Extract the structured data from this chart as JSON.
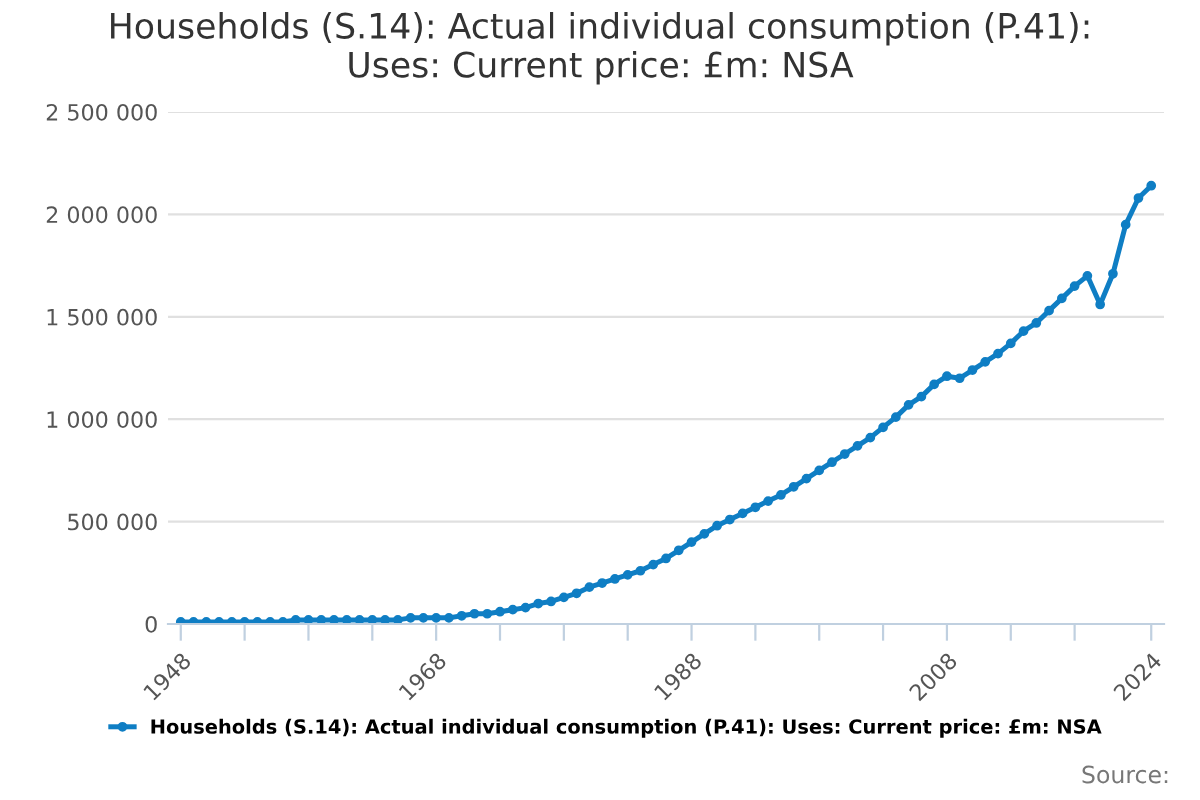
{
  "chart_data": {
    "type": "line",
    "title": "Households (S.14): Actual individual consumption (P.41):\nUses: Current price: £m: NSA",
    "x": [
      1948,
      1949,
      1950,
      1951,
      1952,
      1953,
      1954,
      1955,
      1956,
      1957,
      1958,
      1959,
      1960,
      1961,
      1962,
      1963,
      1964,
      1965,
      1966,
      1967,
      1968,
      1969,
      1970,
      1971,
      1972,
      1973,
      1974,
      1975,
      1976,
      1977,
      1978,
      1979,
      1980,
      1981,
      1982,
      1983,
      1984,
      1985,
      1986,
      1987,
      1988,
      1989,
      1990,
      1991,
      1992,
      1993,
      1994,
      1995,
      1996,
      1997,
      1998,
      1999,
      2000,
      2001,
      2002,
      2003,
      2004,
      2005,
      2006,
      2007,
      2008,
      2009,
      2010,
      2011,
      2012,
      2013,
      2014,
      2015,
      2016,
      2017,
      2018,
      2019,
      2020,
      2021,
      2022,
      2023,
      2024
    ],
    "series": [
      {
        "name": "Households (S.14): Actual individual consumption (P.41): Uses: Current price: £m: NSA",
        "color": "#0f7ec4",
        "values": [
          10000,
          10000,
          10000,
          10000,
          10000,
          10000,
          10000,
          10000,
          10000,
          20000,
          20000,
          20000,
          20000,
          20000,
          20000,
          20000,
          20000,
          20000,
          30000,
          30000,
          30000,
          30000,
          40000,
          50000,
          50000,
          60000,
          70000,
          80000,
          100000,
          110000,
          130000,
          150000,
          180000,
          200000,
          220000,
          240000,
          260000,
          290000,
          320000,
          360000,
          400000,
          440000,
          480000,
          510000,
          540000,
          570000,
          600000,
          630000,
          670000,
          710000,
          750000,
          790000,
          830000,
          870000,
          910000,
          960000,
          1010000,
          1070000,
          1110000,
          1170000,
          1210000,
          1200000,
          1240000,
          1280000,
          1320000,
          1370000,
          1430000,
          1470000,
          1530000,
          1590000,
          1650000,
          1700000,
          1560000,
          1710000,
          1950000,
          2080000,
          2140000
        ]
      }
    ],
    "xlim": [
      1947,
      2025
    ],
    "xticks": [
      {
        "value": 1948,
        "label": "1948"
      },
      {
        "value": 1953,
        "label": null
      },
      {
        "value": 1958,
        "label": null
      },
      {
        "value": 1963,
        "label": null
      },
      {
        "value": 1968,
        "label": "1968"
      },
      {
        "value": 1973,
        "label": null
      },
      {
        "value": 1978,
        "label": null
      },
      {
        "value": 1983,
        "label": null
      },
      {
        "value": 1988,
        "label": "1988"
      },
      {
        "value": 1993,
        "label": null
      },
      {
        "value": 1998,
        "label": null
      },
      {
        "value": 2003,
        "label": null
      },
      {
        "value": 2008,
        "label": "2008"
      },
      {
        "value": 2013,
        "label": null
      },
      {
        "value": 2018,
        "label": null
      },
      {
        "value": 2024,
        "label": "2024"
      }
    ],
    "ylim": [
      0,
      2500000
    ],
    "yticks": [
      0,
      {
        "value": 500000,
        "label": "500 000"
      },
      {
        "value": 1000000,
        "label": "1 000 000"
      },
      {
        "value": 1500000,
        "label": "1 500 000"
      },
      {
        "value": 2000000,
        "label": "2 000 000"
      },
      {
        "value": 2500000,
        "label": "2 500 000"
      }
    ],
    "grid": "y",
    "legend": "bottom",
    "marker": "circle",
    "line_style": "solid",
    "annotations": [
      "Source:"
    ]
  }
}
